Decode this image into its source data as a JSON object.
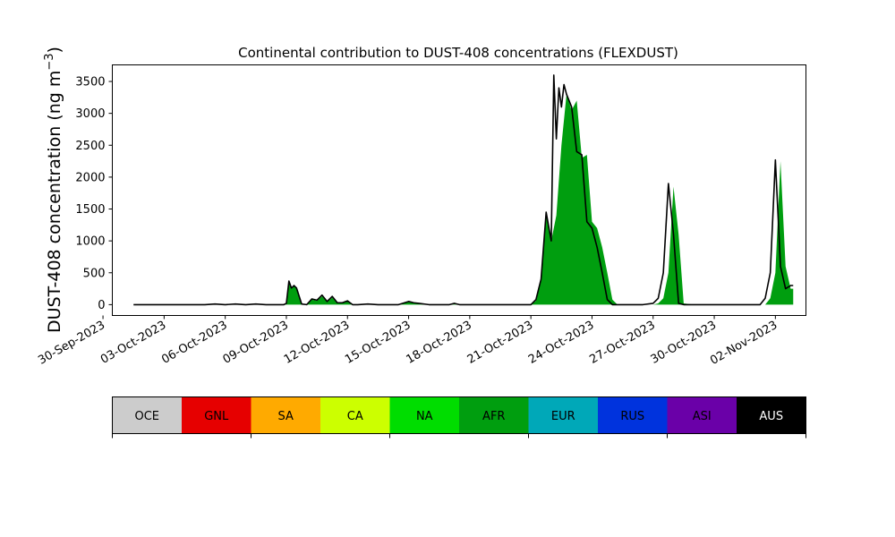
{
  "chart_data": {
    "type": "area",
    "title": "Continental contribution to DUST-408 concentrations (FLEXDUST)",
    "ylabel_main": "DUST-408 concentration (ng m",
    "ylabel_sup": "−3",
    "ylabel_close": ")",
    "xlabel": "",
    "ylim": [
      -170,
      3760
    ],
    "xlim": [
      "2023-09-30T11:00",
      "2023-11-03T12:00"
    ],
    "yticks": [
      0,
      500,
      1000,
      1500,
      2000,
      2500,
      3000,
      3500
    ],
    "ytick_labels": [
      "0",
      "500",
      "1000",
      "1500",
      "2000",
      "2500",
      "3000",
      "3500"
    ],
    "xticks": [
      "2023-09-30",
      "2023-10-03",
      "2023-10-06",
      "2023-10-09",
      "2023-10-12",
      "2023-10-15",
      "2023-10-18",
      "2023-10-21",
      "2023-10-24",
      "2023-10-27",
      "2023-10-30",
      "2023-11-02"
    ],
    "xtick_labels": [
      "30-Sep-2023",
      "03-Oct-2023",
      "06-Oct-2023",
      "09-Oct-2023",
      "12-Oct-2023",
      "15-Oct-2023",
      "18-Oct-2023",
      "21-Oct-2023",
      "24-Oct-2023",
      "27-Oct-2023",
      "30-Oct-2023",
      "02-Nov-2023"
    ],
    "grid": false,
    "dominant_series": "AFR",
    "total_line_color": "#000000",
    "series": [
      {
        "name": "AFR",
        "color": "#009e0f",
        "x": [
          "2023-10-01T12:00",
          "2023-10-02T00:00",
          "2023-10-03T00:00",
          "2023-10-04T00:00",
          "2023-10-05T00:00",
          "2023-10-05T12:00",
          "2023-10-06T00:00",
          "2023-10-06T12:00",
          "2023-10-07T00:00",
          "2023-10-07T12:00",
          "2023-10-08T00:00",
          "2023-10-08T12:00",
          "2023-10-08T21:00",
          "2023-10-09T00:00",
          "2023-10-09T03:00",
          "2023-10-09T06:00",
          "2023-10-09T09:00",
          "2023-10-09T12:00",
          "2023-10-09T18:00",
          "2023-10-10T00:00",
          "2023-10-10T06:00",
          "2023-10-10T12:00",
          "2023-10-10T18:00",
          "2023-10-11T00:00",
          "2023-10-11T06:00",
          "2023-10-11T12:00",
          "2023-10-11T18:00",
          "2023-10-12T00:00",
          "2023-10-12T06:00",
          "2023-10-12T12:00",
          "2023-10-13T00:00",
          "2023-10-13T12:00",
          "2023-10-14T00:00",
          "2023-10-14T12:00",
          "2023-10-15T00:00",
          "2023-10-15T06:00",
          "2023-10-15T12:00",
          "2023-10-16T00:00",
          "2023-10-16T12:00",
          "2023-10-17T00:00",
          "2023-10-17T06:00",
          "2023-10-17T12:00",
          "2023-10-18T00:00",
          "2023-10-19T00:00",
          "2023-10-20T00:00",
          "2023-10-20T12:00",
          "2023-10-21T00:00",
          "2023-10-21T06:00",
          "2023-10-21T12:00",
          "2023-10-21T18:00",
          "2023-10-22T00:00",
          "2023-10-22T06:00",
          "2023-10-22T12:00",
          "2023-10-22T18:00",
          "2023-10-23T00:00",
          "2023-10-23T06:00",
          "2023-10-23T12:00",
          "2023-10-23T18:00",
          "2023-10-24T00:00",
          "2023-10-24T06:00",
          "2023-10-24T12:00",
          "2023-10-24T18:00",
          "2023-10-25T00:00",
          "2023-10-25T06:00",
          "2023-10-25T12:00",
          "2023-10-26T00:00",
          "2023-10-26T12:00",
          "2023-10-27T00:00",
          "2023-10-27T06:00",
          "2023-10-27T12:00",
          "2023-10-27T18:00",
          "2023-10-28T00:00",
          "2023-10-28T06:00",
          "2023-10-28T12:00",
          "2023-10-29T00:00",
          "2023-10-30T00:00",
          "2023-10-31T00:00",
          "2023-11-01T00:00",
          "2023-11-01T06:00",
          "2023-11-01T12:00",
          "2023-11-01T18:00",
          "2023-11-02T00:00",
          "2023-11-02T06:00",
          "2023-11-02T12:00",
          "2023-11-02T18:00",
          "2023-11-02T21:00"
        ],
        "values": [
          0,
          0,
          0,
          0,
          0,
          10,
          0,
          10,
          0,
          10,
          0,
          0,
          0,
          20,
          350,
          250,
          300,
          250,
          10,
          0,
          80,
          60,
          130,
          40,
          110,
          20,
          30,
          50,
          0,
          0,
          10,
          0,
          0,
          0,
          50,
          30,
          20,
          0,
          0,
          0,
          20,
          0,
          0,
          0,
          0,
          0,
          0,
          60,
          400,
          1450,
          1000,
          1400,
          2500,
          3300,
          3050,
          3200,
          2300,
          2350,
          1300,
          1200,
          900,
          500,
          80,
          0,
          0,
          0,
          0,
          0,
          20,
          100,
          500,
          1850,
          1100,
          20,
          0,
          0,
          0,
          0,
          0,
          0,
          100,
          500,
          2250,
          600,
          250,
          250
        ]
      },
      {
        "name": "TOTAL",
        "color": "#000000",
        "x": [
          "2023-10-01T12:00",
          "2023-10-02T00:00",
          "2023-10-03T00:00",
          "2023-10-04T00:00",
          "2023-10-05T00:00",
          "2023-10-05T12:00",
          "2023-10-06T00:00",
          "2023-10-06T12:00",
          "2023-10-07T00:00",
          "2023-10-07T12:00",
          "2023-10-08T00:00",
          "2023-10-08T12:00",
          "2023-10-08T21:00",
          "2023-10-09T00:00",
          "2023-10-09T03:00",
          "2023-10-09T06:00",
          "2023-10-09T09:00",
          "2023-10-09T12:00",
          "2023-10-09T18:00",
          "2023-10-10T00:00",
          "2023-10-10T06:00",
          "2023-10-10T12:00",
          "2023-10-10T18:00",
          "2023-10-11T00:00",
          "2023-10-11T06:00",
          "2023-10-11T12:00",
          "2023-10-11T18:00",
          "2023-10-12T00:00",
          "2023-10-12T06:00",
          "2023-10-12T12:00",
          "2023-10-13T00:00",
          "2023-10-13T12:00",
          "2023-10-14T00:00",
          "2023-10-14T12:00",
          "2023-10-15T00:00",
          "2023-10-15T06:00",
          "2023-10-15T12:00",
          "2023-10-16T00:00",
          "2023-10-16T12:00",
          "2023-10-17T00:00",
          "2023-10-17T06:00",
          "2023-10-17T12:00",
          "2023-10-18T00:00",
          "2023-10-19T00:00",
          "2023-10-20T00:00",
          "2023-10-20T12:00",
          "2023-10-21T00:00",
          "2023-10-21T06:00",
          "2023-10-21T12:00",
          "2023-10-21T18:00",
          "2023-10-22T00:00",
          "2023-10-22T03:00",
          "2023-10-22T06:00",
          "2023-10-22T09:00",
          "2023-10-22T12:00",
          "2023-10-22T15:00",
          "2023-10-22T18:00",
          "2023-10-23T00:00",
          "2023-10-23T06:00",
          "2023-10-23T12:00",
          "2023-10-23T18:00",
          "2023-10-24T00:00",
          "2023-10-24T06:00",
          "2023-10-24T12:00",
          "2023-10-24T18:00",
          "2023-10-25T00:00",
          "2023-10-25T06:00",
          "2023-10-25T12:00",
          "2023-10-26T00:00",
          "2023-10-26T12:00",
          "2023-10-27T00:00",
          "2023-10-27T06:00",
          "2023-10-27T12:00",
          "2023-10-27T18:00",
          "2023-10-28T00:00",
          "2023-10-28T06:00",
          "2023-10-28T12:00",
          "2023-10-29T00:00",
          "2023-10-30T00:00",
          "2023-10-31T00:00",
          "2023-11-01T00:00",
          "2023-11-01T06:00",
          "2023-11-01T12:00",
          "2023-11-01T18:00",
          "2023-11-02T00:00",
          "2023-11-02T06:00",
          "2023-11-02T12:00",
          "2023-11-02T18:00",
          "2023-11-02T21:00"
        ],
        "values": [
          0,
          0,
          0,
          0,
          0,
          10,
          0,
          10,
          0,
          10,
          0,
          0,
          0,
          20,
          370,
          260,
          300,
          260,
          10,
          0,
          90,
          70,
          150,
          50,
          130,
          30,
          30,
          60,
          0,
          0,
          10,
          0,
          0,
          0,
          50,
          30,
          20,
          0,
          0,
          0,
          20,
          0,
          0,
          0,
          0,
          0,
          0,
          80,
          400,
          1450,
          1000,
          3600,
          2600,
          3400,
          3100,
          3450,
          3300,
          3100,
          2400,
          2350,
          1300,
          1200,
          900,
          500,
          80,
          0,
          0,
          0,
          0,
          0,
          20,
          100,
          500,
          1900,
          1100,
          20,
          0,
          0,
          0,
          0,
          0,
          0,
          100,
          500,
          2270,
          600,
          250,
          300,
          300
        ]
      }
    ],
    "legend": {
      "placement": "below",
      "entries": [
        {
          "name": "OCE",
          "color": "#cccccc",
          "text_color": "#000000"
        },
        {
          "name": "GNL",
          "color": "#e60000",
          "text_color": "#000000"
        },
        {
          "name": "SA",
          "color": "#ffaa00",
          "text_color": "#000000"
        },
        {
          "name": "CA",
          "color": "#ccff00",
          "text_color": "#000000"
        },
        {
          "name": "NA",
          "color": "#00dd00",
          "text_color": "#000000"
        },
        {
          "name": "AFR",
          "color": "#009e0f",
          "text_color": "#000000"
        },
        {
          "name": "EUR",
          "color": "#00a8b8",
          "text_color": "#000000"
        },
        {
          "name": "RUS",
          "color": "#0033dd",
          "text_color": "#000000"
        },
        {
          "name": "ASI",
          "color": "#6a00a8",
          "text_color": "#000000"
        },
        {
          "name": "AUS",
          "color": "#000000",
          "text_color": "#ffffff"
        }
      ]
    }
  }
}
